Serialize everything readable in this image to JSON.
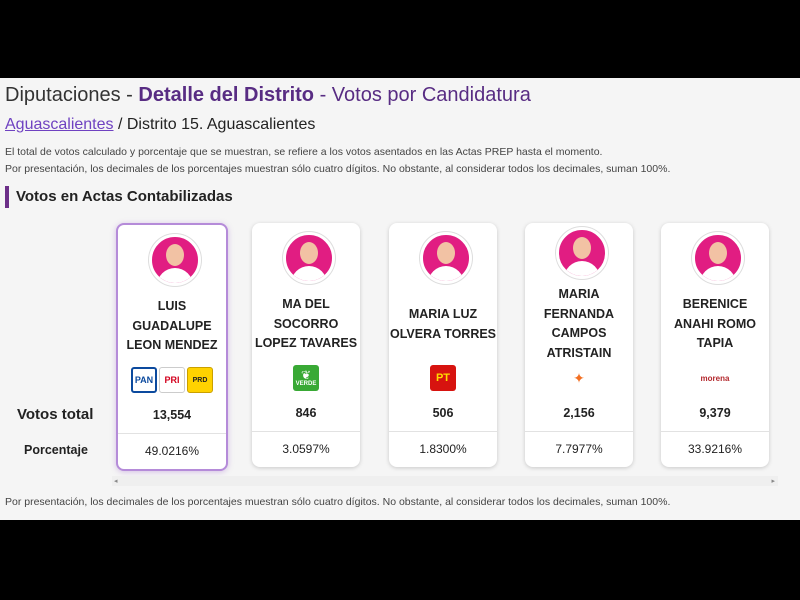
{
  "header": {
    "title_prefix": "Diputaciones - ",
    "title_bold": "Detalle del Distrito",
    "title_suffix": " - Votos por Candidatura"
  },
  "breadcrumb": {
    "link": "Aguascalientes",
    "rest": " / Distrito 15.  Aguascalientes"
  },
  "notes": {
    "line1": "El total de votos calculado y porcentaje que se muestran, se refiere a los votos asentados en las Actas PREP hasta el momento.",
    "line2": "Por presentación, los decimales de los porcentajes muestran sólo cuatro dígitos. No obstante, al considerar todos los decimales, suman 100%."
  },
  "section_title": "Votos en Actas Contabilizadas",
  "row_labels": {
    "votes": "Votos total",
    "percent": "Porcentaje"
  },
  "candidates": [
    {
      "name1": "LUIS",
      "name2": "GUADALUPE",
      "name3": "LEON MENDEZ",
      "name4": "",
      "votes": "13,554",
      "percent": "49.0216%",
      "logos": [
        "PAN",
        "PRI",
        "PRD"
      ]
    },
    {
      "name1": "MA DEL",
      "name2": "SOCORRO",
      "name3": "LOPEZ TAVARES",
      "name4": "",
      "votes": "846",
      "percent": "3.0597%",
      "logos": [
        "VERDE"
      ]
    },
    {
      "name1": "MARIA LUZ",
      "name2": "OLVERA TORRES",
      "name3": "",
      "name4": "",
      "votes": "506",
      "percent": "1.8300%",
      "logos": [
        "PT"
      ]
    },
    {
      "name1": "MARIA",
      "name2": "FERNANDA",
      "name3": "CAMPOS",
      "name4": "ATRISTAIN",
      "votes": "2,156",
      "percent": "7.7977%",
      "logos": [
        "MC"
      ]
    },
    {
      "name1": "BERENICE",
      "name2": "ANAHI ROMO",
      "name3": "TAPIA",
      "name4": "",
      "votes": "9,379",
      "percent": "33.9216%",
      "logos": [
        "morena"
      ]
    }
  ],
  "logo_text": {
    "pan": "PAN",
    "pri": "PRI",
    "prd": "PRD",
    "verde": "VERDE",
    "pt": "PT",
    "mc": "✦",
    "morena": "morena"
  },
  "scroll": {
    "left": "◂",
    "right": "▸"
  },
  "footer": "Por presentación, los decimales de los porcentajes muestran sólo cuatro dígitos. No obstante, al considerar todos los decimales, suman 100%.",
  "colors": {
    "accent": "#582c83",
    "avatar": "#e11d82"
  }
}
